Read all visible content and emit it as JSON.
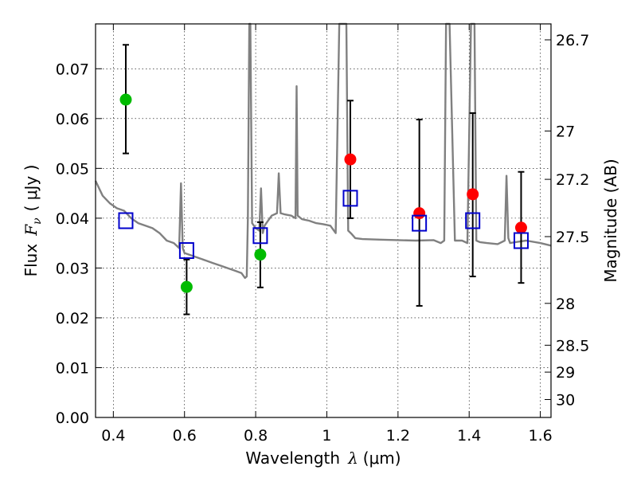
{
  "chart_data": {
    "type": "scatter",
    "title": "",
    "xlabel_prefix": "Wavelength",
    "xlabel_lambda": "λ",
    "xlabel_unit": "(μm)",
    "ylabel_prefix": "Flux",
    "ylabel_F": "F",
    "ylabel_nu": "ν",
    "ylabel_unit": "( μJy )",
    "y2label": "Magnitude (AB)",
    "xlim": [
      0.35,
      1.63
    ],
    "ylim": [
      0.0,
      0.079
    ],
    "grid": true,
    "x_ticks": [
      0.4,
      0.6,
      0.8,
      1.0,
      1.2,
      1.4,
      1.6
    ],
    "x_tick_labels": [
      "0.4",
      "0.6",
      "0.8",
      "1",
      "1.2",
      "1.4",
      "1.6"
    ],
    "y_ticks": [
      0.0,
      0.01,
      0.02,
      0.03,
      0.04,
      0.05,
      0.06,
      0.07
    ],
    "y_tick_labels": [
      "0.00",
      "0.01",
      "0.02",
      "0.03",
      "0.04",
      "0.05",
      "0.06",
      "0.07"
    ],
    "y2_ticks": [
      {
        "label": "26.7",
        "flux": 0.0758
      },
      {
        "label": "27",
        "flux": 0.0575
      },
      {
        "label": "27.2",
        "flux": 0.0478
      },
      {
        "label": "27.5",
        "flux": 0.0363
      },
      {
        "label": "28",
        "flux": 0.0229
      },
      {
        "label": "28.5",
        "flux": 0.0145
      },
      {
        "label": "29",
        "flux": 0.0091
      },
      {
        "label": "30",
        "flux": 0.0036
      }
    ],
    "colors": {
      "green": "#00bb00",
      "red": "#ff0000",
      "model_box": "#0000cc",
      "spectrum": "#808080",
      "errorbar": "#000000"
    },
    "spectrum": {
      "name": "model spectrum",
      "x": [
        0.35,
        0.37,
        0.39,
        0.41,
        0.43,
        0.45,
        0.47,
        0.49,
        0.51,
        0.53,
        0.55,
        0.57,
        0.585,
        0.59,
        0.595,
        0.6,
        0.62,
        0.64,
        0.66,
        0.68,
        0.7,
        0.72,
        0.74,
        0.76,
        0.77,
        0.775,
        0.778,
        0.782,
        0.785,
        0.79,
        0.8,
        0.81,
        0.815,
        0.82,
        0.825,
        0.83,
        0.845,
        0.86,
        0.865,
        0.87,
        0.88,
        0.9,
        0.912,
        0.915,
        0.918,
        0.93,
        0.95,
        0.97,
        0.99,
        1.01,
        1.02,
        1.025,
        1.035,
        1.045,
        1.055,
        1.06,
        1.07,
        1.08,
        1.1,
        1.15,
        1.2,
        1.25,
        1.3,
        1.32,
        1.33,
        1.335,
        1.345,
        1.36,
        1.38,
        1.395,
        1.405,
        1.41,
        1.415,
        1.42,
        1.43,
        1.45,
        1.48,
        1.5,
        1.505,
        1.51,
        1.515,
        1.53,
        1.56,
        1.6,
        1.63
      ],
      "y": [
        0.0475,
        0.0445,
        0.043,
        0.042,
        0.0415,
        0.04,
        0.039,
        0.0385,
        0.038,
        0.037,
        0.0355,
        0.035,
        0.034,
        0.047,
        0.034,
        0.033,
        0.0325,
        0.032,
        0.0315,
        0.031,
        0.0305,
        0.03,
        0.0295,
        0.029,
        0.028,
        0.0283,
        0.04,
        0.079,
        0.079,
        0.039,
        0.038,
        0.0375,
        0.046,
        0.037,
        0.0385,
        0.039,
        0.0405,
        0.041,
        0.049,
        0.041,
        0.0408,
        0.0405,
        0.04,
        0.0665,
        0.0405,
        0.0398,
        0.0395,
        0.039,
        0.0388,
        0.0385,
        0.0375,
        0.037,
        0.079,
        0.079,
        0.079,
        0.0375,
        0.0368,
        0.036,
        0.0358,
        0.0357,
        0.0356,
        0.0355,
        0.0356,
        0.035,
        0.0355,
        0.079,
        0.079,
        0.0355,
        0.0355,
        0.035,
        0.079,
        0.079,
        0.079,
        0.0355,
        0.0352,
        0.035,
        0.0348,
        0.0355,
        0.0485,
        0.036,
        0.035,
        0.0352,
        0.0355,
        0.035,
        0.0345
      ]
    },
    "series": [
      {
        "name": "photometry (green)",
        "marker": "circle",
        "color": "#00bb00",
        "points": [
          {
            "x": 0.435,
            "y": 0.0638,
            "ylow": 0.053,
            "yhigh": 0.0748
          },
          {
            "x": 0.606,
            "y": 0.0262,
            "ylow": 0.0207,
            "yhigh": 0.0317
          },
          {
            "x": 0.813,
            "y": 0.0327,
            "ylow": 0.0261,
            "yhigh": 0.0392
          }
        ]
      },
      {
        "name": "photometry (red)",
        "marker": "circle",
        "color": "#ff0000",
        "points": [
          {
            "x": 1.066,
            "y": 0.0518,
            "ylow": 0.04,
            "yhigh": 0.0636
          },
          {
            "x": 1.26,
            "y": 0.041,
            "ylow": 0.0224,
            "yhigh": 0.0598
          },
          {
            "x": 1.41,
            "y": 0.0448,
            "ylow": 0.0283,
            "yhigh": 0.0611
          },
          {
            "x": 1.546,
            "y": 0.0381,
            "ylow": 0.027,
            "yhigh": 0.0493
          }
        ]
      },
      {
        "name": "model synthetic photometry",
        "marker": "open-square",
        "color": "#0000cc",
        "points": [
          {
            "x": 0.435,
            "y": 0.0395
          },
          {
            "x": 0.606,
            "y": 0.0335
          },
          {
            "x": 0.813,
            "y": 0.0365
          },
          {
            "x": 1.066,
            "y": 0.044
          },
          {
            "x": 1.26,
            "y": 0.039
          },
          {
            "x": 1.41,
            "y": 0.0395
          },
          {
            "x": 1.546,
            "y": 0.0355
          }
        ]
      }
    ]
  }
}
